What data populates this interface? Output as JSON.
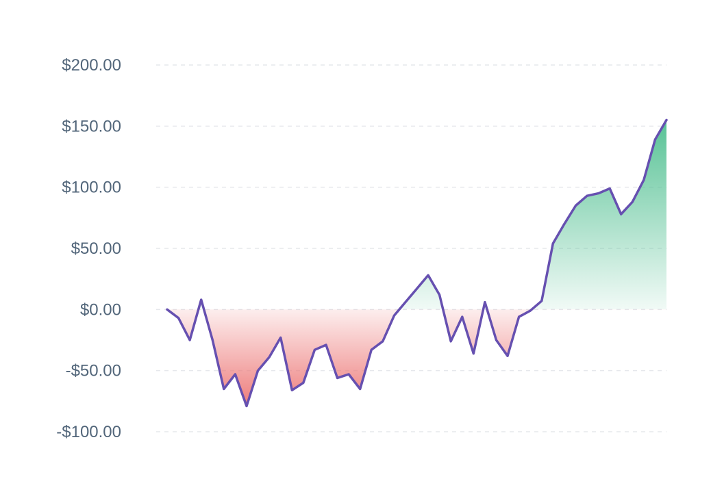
{
  "chart_data": {
    "type": "area",
    "title": "",
    "xlabel": "",
    "ylabel": "",
    "ylim": [
      -100,
      200
    ],
    "xlim": [
      0,
      44
    ],
    "grid": true,
    "legend": "none",
    "y_ticks": [
      200,
      150,
      100,
      50,
      0,
      -50,
      -100
    ],
    "y_tick_labels": [
      "$200.00",
      "$150.00",
      "$100.00",
      "$50.00",
      "$0.00",
      "-$50.00",
      "-$100.00"
    ],
    "x": [
      0,
      1,
      2,
      3,
      4,
      5,
      6,
      7,
      8,
      9,
      10,
      11,
      12,
      13,
      14,
      15,
      16,
      17,
      18,
      19,
      20,
      21,
      22,
      23,
      24,
      25,
      26,
      27,
      28,
      29,
      30,
      31,
      32,
      33,
      34,
      35,
      36,
      37,
      38,
      39,
      40,
      41,
      42,
      43,
      44
    ],
    "series": [
      {
        "values": [
          0,
          -7,
          -25,
          8,
          -25,
          -65,
          -53,
          -79,
          -50,
          -39,
          -23,
          -66,
          -60,
          -33,
          -29,
          -56,
          -53,
          -65,
          -33,
          -26,
          -5,
          6,
          17,
          28,
          12,
          -26,
          -6,
          -36,
          6,
          -25,
          -38,
          -6,
          -1,
          7,
          54,
          70,
          85,
          93,
          95,
          99,
          78,
          88,
          106,
          139,
          155
        ]
      }
    ],
    "colors": {
      "line": "#6650b0",
      "positive_fill": "#4fbf90",
      "negative_fill": "#ec7574",
      "grid": "#e6e8ec",
      "tick_label": "#52667a"
    }
  }
}
